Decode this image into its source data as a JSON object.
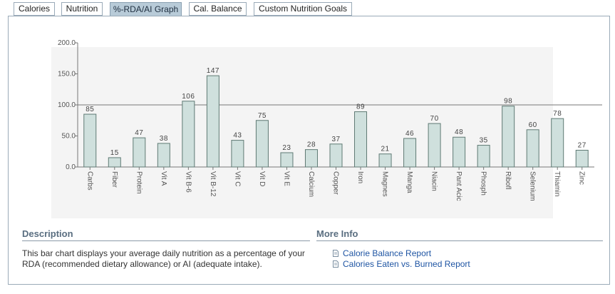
{
  "tabs": [
    {
      "label": "Calories",
      "active": false
    },
    {
      "label": "Nutrition",
      "active": false
    },
    {
      "label": "%-RDA/AI Graph",
      "active": true
    },
    {
      "label": "Cal. Balance",
      "active": false
    },
    {
      "label": "Custom Nutrition Goals",
      "active": false
    }
  ],
  "chart_data": {
    "type": "bar",
    "title": "",
    "xlabel": "",
    "ylabel": "",
    "ylim": [
      0,
      200
    ],
    "yticks": [
      "0.0",
      "50.0",
      "100.0",
      "150.0",
      "200.0"
    ],
    "reference_line": 100,
    "grid": false,
    "bar_color": "#cfe0dd",
    "bar_border": "#5f7a74",
    "categories": [
      "Carbs",
      "Fiber",
      "Protein",
      "Vit A",
      "Vit B-6",
      "Vit B-12",
      "Vit C",
      "Vit D",
      "Vit E",
      "Calcium",
      "Copper",
      "Iron",
      "Magnes",
      "Manga",
      "Niacin",
      "Pant Acic",
      "Phosph",
      "Ribofl",
      "Selenium",
      "Thiamin",
      "Zinc"
    ],
    "values": [
      85,
      15,
      47,
      38,
      106,
      147,
      43,
      75,
      23,
      28,
      37,
      89,
      21,
      46,
      70,
      48,
      35,
      98,
      60,
      78,
      27
    ]
  },
  "description": {
    "title": "Description",
    "text": "This bar chart displays your average daily nutrition as a percentage of your RDA (recommended dietary allowance) or AI (adequate intake)."
  },
  "more_info": {
    "title": "More Info",
    "links": [
      "Calorie Balance Report",
      "Calories Eaten vs. Burned Report"
    ]
  }
}
